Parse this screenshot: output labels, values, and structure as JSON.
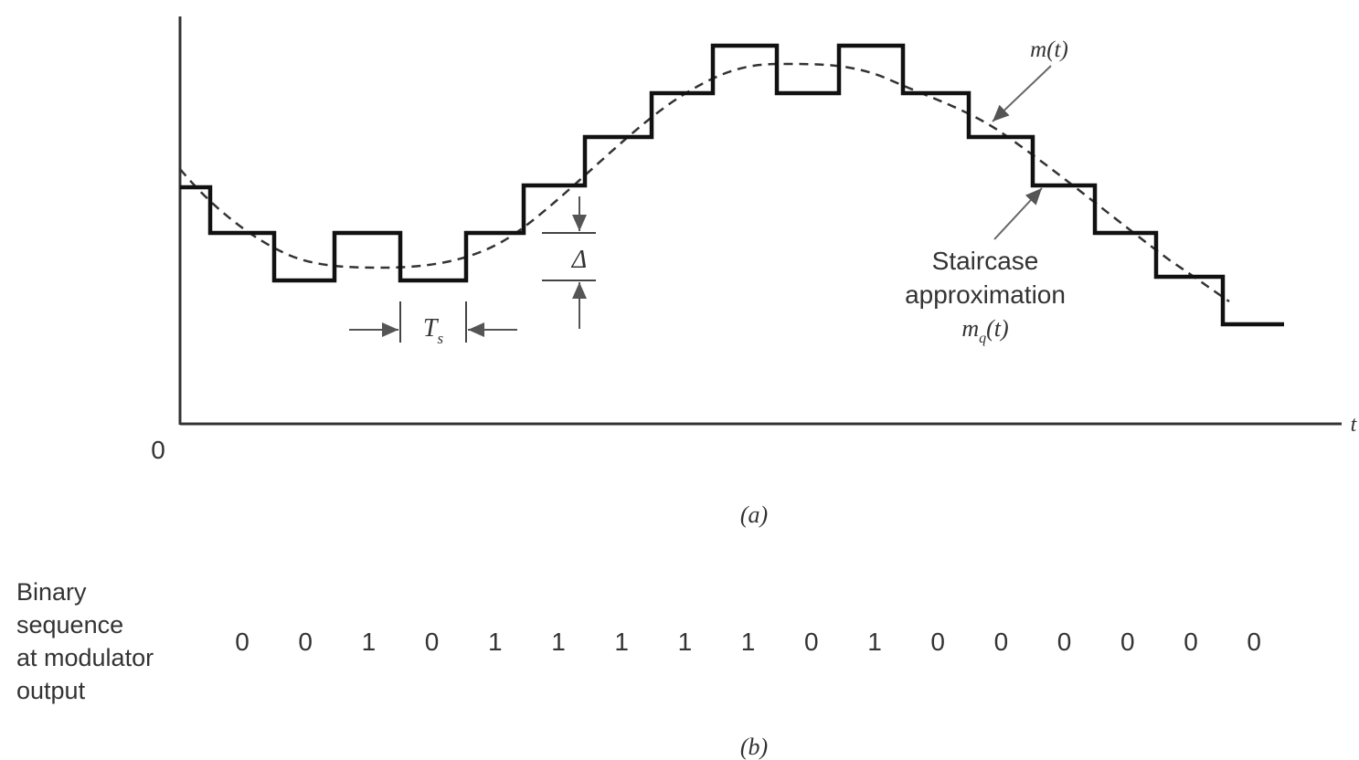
{
  "diagram": {
    "origin_label": "0",
    "t_axis_label": "t",
    "signal_label": "m(t)",
    "staircase_label_lines": [
      "Staircase",
      "approximation"
    ],
    "staircase_symbol": "m",
    "staircase_symbol_sub": "q",
    "staircase_symbol_arg": "(t)",
    "sampling_period_label": "T",
    "sampling_period_sub": "s",
    "step_size_label": "Δ",
    "caption_a": "(a)",
    "caption_b": "(b)"
  },
  "binary": {
    "label_lines": [
      "Binary",
      "sequence",
      "at modulator",
      "output"
    ],
    "bits": [
      "0",
      "0",
      "1",
      "0",
      "1",
      "1",
      "1",
      "1",
      "1",
      "0",
      "1",
      "0",
      "0",
      "0",
      "0",
      "0",
      "0"
    ]
  }
}
